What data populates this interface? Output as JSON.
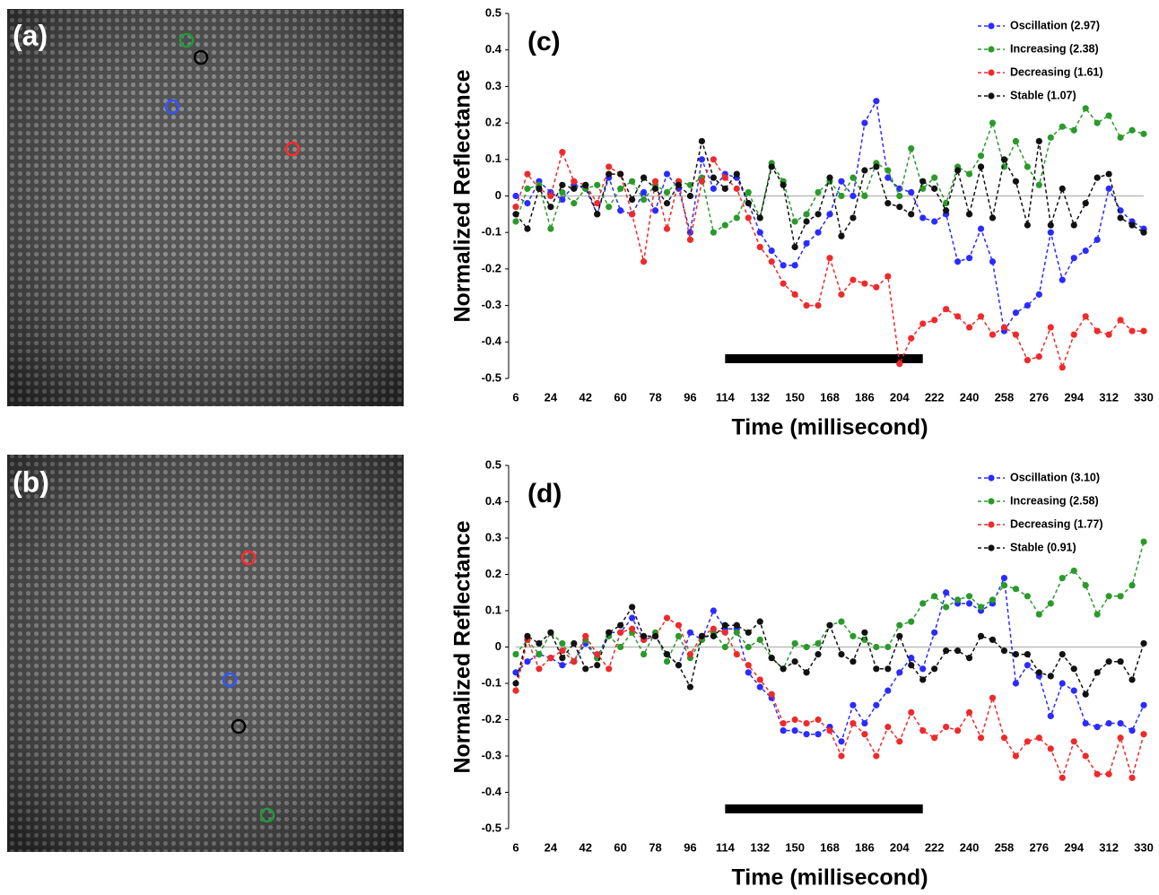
{
  "images": [
    {
      "label": "(a)"
    },
    {
      "label": "(b)"
    }
  ],
  "chart_data": [
    {
      "type": "line",
      "panel_label": "(c)",
      "y_label": "Normalized Reflectance",
      "x_label": "Time (millisecond)",
      "x": [
        6,
        12,
        18,
        24,
        30,
        36,
        42,
        48,
        54,
        60,
        66,
        72,
        78,
        84,
        90,
        96,
        102,
        108,
        114,
        120,
        126,
        132,
        138,
        144,
        150,
        156,
        162,
        168,
        174,
        180,
        186,
        192,
        198,
        204,
        210,
        216,
        222,
        228,
        234,
        240,
        246,
        252,
        258,
        264,
        270,
        276,
        282,
        288,
        294,
        300,
        306,
        312,
        318,
        324,
        330
      ],
      "xlim": [
        6,
        330
      ],
      "xticks": [
        6,
        24,
        42,
        60,
        78,
        96,
        114,
        132,
        150,
        168,
        186,
        204,
        222,
        240,
        258,
        276,
        294,
        312,
        330
      ],
      "ylim": [
        -0.5,
        0.5
      ],
      "yticks": [
        0.5,
        0.4,
        0.3,
        0.2,
        0.1,
        0,
        -0.1,
        -0.2,
        -0.3,
        -0.4,
        -0.5
      ],
      "zero_line": true,
      "legend": "upper right",
      "stimulus": [
        114,
        216
      ],
      "series": [
        {
          "name": "Oscillation (2.97)",
          "color": "#2b2bff",
          "values": [
            0,
            -0.02,
            0.04,
            0.01,
            -0.01,
            0.03,
            0.02,
            -0.05,
            0.05,
            -0.04,
            -0.05,
            0.01,
            -0.04,
            0.06,
            0.02,
            -0.1,
            0.1,
            0.02,
            0.06,
            0.05,
            -0.02,
            -0.1,
            -0.15,
            -0.19,
            -0.19,
            -0.13,
            -0.1,
            -0.05,
            0.04,
            0,
            0.2,
            0.26,
            0.05,
            0.02,
            0.01,
            -0.06,
            -0.07,
            -0.05,
            -0.18,
            -0.17,
            -0.09,
            -0.18,
            -0.37,
            -0.32,
            -0.3,
            -0.27,
            -0.1,
            -0.23,
            -0.17,
            -0.15,
            -0.12,
            0.02,
            -0.04,
            -0.07,
            -0.09
          ]
        },
        {
          "name": "Increasing (2.38)",
          "color": "#2a9a2a",
          "values": [
            -0.07,
            0.02,
            0.03,
            -0.09,
            0.01,
            -0.02,
            0.02,
            0.03,
            -0.03,
            0.02,
            0.04,
            -0.01,
            0.03,
            0.01,
            0.04,
            0.03,
            0.05,
            -0.1,
            -0.08,
            -0.06,
            0.01,
            -0.06,
            0.09,
            0.04,
            -0.07,
            -0.05,
            0.01,
            0.04,
            0,
            0.05,
            0,
            0.09,
            0.07,
            0,
            0.13,
            0.02,
            0.05,
            -0.02,
            0.08,
            0.06,
            0.11,
            0.2,
            0.08,
            0.15,
            0.08,
            0.03,
            0.16,
            0.19,
            0.18,
            0.24,
            0.2,
            0.22,
            0.16,
            0.18,
            0.17
          ]
        },
        {
          "name": "Decreasing (1.61)",
          "color": "#ee2a2a",
          "values": [
            -0.03,
            0.06,
            0.02,
            0,
            0.12,
            0.04,
            0.03,
            -0.02,
            0.08,
            0.06,
            -0.05,
            -0.18,
            0.04,
            -0.09,
            0.04,
            -0.12,
            0.04,
            0.1,
            0.05,
            0.02,
            -0.06,
            -0.14,
            -0.18,
            -0.24,
            -0.27,
            -0.3,
            -0.3,
            -0.17,
            -0.27,
            -0.23,
            -0.24,
            -0.25,
            -0.22,
            -0.46,
            -0.39,
            -0.35,
            -0.34,
            -0.31,
            -0.33,
            -0.36,
            -0.33,
            -0.38,
            -0.36,
            -0.38,
            -0.45,
            -0.44,
            -0.36,
            -0.47,
            -0.38,
            -0.33,
            -0.37,
            -0.38,
            -0.34,
            -0.37,
            -0.37
          ]
        },
        {
          "name": "Stable (1.07)",
          "color": "#111111",
          "values": [
            -0.05,
            -0.09,
            0.02,
            -0.03,
            0.03,
            0.02,
            0.03,
            -0.05,
            0.06,
            0.06,
            -0.01,
            0.05,
            0.02,
            -0.02,
            0.03,
            0,
            0.15,
            0.05,
            0.02,
            0.06,
            -0.02,
            -0.06,
            0.08,
            0.03,
            -0.14,
            -0.07,
            -0.05,
            0.05,
            -0.11,
            -0.06,
            0.07,
            0.08,
            -0.02,
            -0.03,
            -0.05,
            0.04,
            0.02,
            -0.04,
            0.07,
            -0.05,
            0.08,
            -0.06,
            0.1,
            0.04,
            -0.08,
            0.15,
            -0.08,
            0.02,
            -0.08,
            -0.02,
            0.05,
            0.06,
            -0.06,
            -0.08,
            -0.1
          ]
        }
      ]
    },
    {
      "type": "line",
      "panel_label": "(d)",
      "y_label": "Normalized Reflectance",
      "x_label": "Time (millisecond)",
      "x": [
        6,
        12,
        18,
        24,
        30,
        36,
        42,
        48,
        54,
        60,
        66,
        72,
        78,
        84,
        90,
        96,
        102,
        108,
        114,
        120,
        126,
        132,
        138,
        144,
        150,
        156,
        162,
        168,
        174,
        180,
        186,
        192,
        198,
        204,
        210,
        216,
        222,
        228,
        234,
        240,
        246,
        252,
        258,
        264,
        270,
        276,
        282,
        288,
        294,
        300,
        306,
        312,
        318,
        324,
        330
      ],
      "xlim": [
        6,
        330
      ],
      "xticks": [
        6,
        24,
        42,
        60,
        78,
        96,
        114,
        132,
        150,
        168,
        186,
        204,
        222,
        240,
        258,
        276,
        294,
        312,
        330
      ],
      "ylim": [
        -0.5,
        0.5
      ],
      "yticks": [
        0.5,
        0.4,
        0.3,
        0.2,
        0.1,
        0,
        -0.1,
        -0.2,
        -0.3,
        -0.4,
        -0.5
      ],
      "zero_line": true,
      "legend": "upper right",
      "stimulus": [
        114,
        216
      ],
      "series": [
        {
          "name": "Oscillation (3.10)",
          "color": "#2b2bff",
          "values": [
            -0.07,
            -0.04,
            -0.02,
            -0.03,
            -0.05,
            -0.04,
            0.01,
            -0.03,
            0.04,
            0.04,
            0.08,
            0.02,
            0.03,
            -0.02,
            -0.05,
            0.04,
            0.02,
            0.1,
            0.05,
            0.05,
            -0.07,
            -0.11,
            -0.14,
            -0.23,
            -0.23,
            -0.24,
            -0.24,
            -0.22,
            -0.26,
            -0.16,
            -0.21,
            -0.16,
            -0.12,
            -0.07,
            -0.03,
            -0.06,
            0.04,
            0.15,
            0.12,
            0.12,
            0.1,
            0.12,
            0.19,
            -0.1,
            -0.05,
            -0.08,
            -0.19,
            -0.1,
            -0.12,
            -0.21,
            -0.22,
            -0.21,
            -0.21,
            -0.23,
            -0.16
          ]
        },
        {
          "name": "Increasing (2.58)",
          "color": "#2a9a2a",
          "values": [
            -0.02,
            0.02,
            -0.02,
            0.04,
            0.01,
            -0.04,
            0.02,
            -0.03,
            0.03,
            0,
            0.04,
            -0.02,
            0.04,
            -0.04,
            0.03,
            -0.03,
            0.02,
            0.04,
            0,
            0.04,
            0,
            0.02,
            -0.03,
            -0.06,
            0.01,
            0,
            0.01,
            0.06,
            0.07,
            0.03,
            0.02,
            0,
            0,
            0.06,
            0.07,
            0.12,
            0.14,
            0.11,
            0.13,
            0.14,
            0.11,
            0.13,
            0.17,
            0.16,
            0.14,
            0.09,
            0.12,
            0.19,
            0.21,
            0.17,
            0.09,
            0.14,
            0.14,
            0.17,
            0.29
          ]
        },
        {
          "name": "Decreasing (1.77)",
          "color": "#ee2a2a",
          "values": [
            -0.12,
            0.02,
            -0.06,
            -0.03,
            -0.01,
            -0.04,
            0.03,
            -0.02,
            -0.06,
            0.04,
            0.05,
            0.02,
            0.03,
            0.08,
            0.06,
            -0.02,
            0.03,
            0.05,
            0.04,
            -0.02,
            -0.05,
            -0.09,
            -0.13,
            -0.21,
            -0.2,
            -0.21,
            -0.2,
            -0.23,
            -0.3,
            -0.21,
            -0.24,
            -0.3,
            -0.22,
            -0.26,
            -0.18,
            -0.23,
            -0.25,
            -0.22,
            -0.23,
            -0.18,
            -0.25,
            -0.14,
            -0.25,
            -0.3,
            -0.26,
            -0.25,
            -0.28,
            -0.36,
            -0.26,
            -0.3,
            -0.35,
            -0.35,
            -0.25,
            -0.36,
            -0.24
          ]
        },
        {
          "name": "Stable (0.91)",
          "color": "#111111",
          "values": [
            -0.1,
            0.03,
            0.01,
            0.04,
            -0.03,
            0.01,
            -0.06,
            -0.05,
            0.04,
            0.06,
            0.11,
            0.03,
            0.03,
            -0.02,
            -0.05,
            -0.11,
            0.03,
            0.03,
            0.06,
            0.06,
            0.04,
            0.07,
            -0.03,
            -0.06,
            -0.04,
            -0.07,
            -0.02,
            0.06,
            -0.02,
            -0.04,
            0.04,
            -0.06,
            -0.06,
            0.03,
            -0.05,
            -0.09,
            -0.06,
            -0.01,
            -0.01,
            -0.03,
            0.03,
            0.02,
            -0.01,
            -0.02,
            -0.02,
            -0.07,
            -0.08,
            -0.02,
            -0.06,
            -0.13,
            -0.07,
            -0.04,
            -0.04,
            -0.09,
            0.01
          ]
        }
      ]
    }
  ]
}
